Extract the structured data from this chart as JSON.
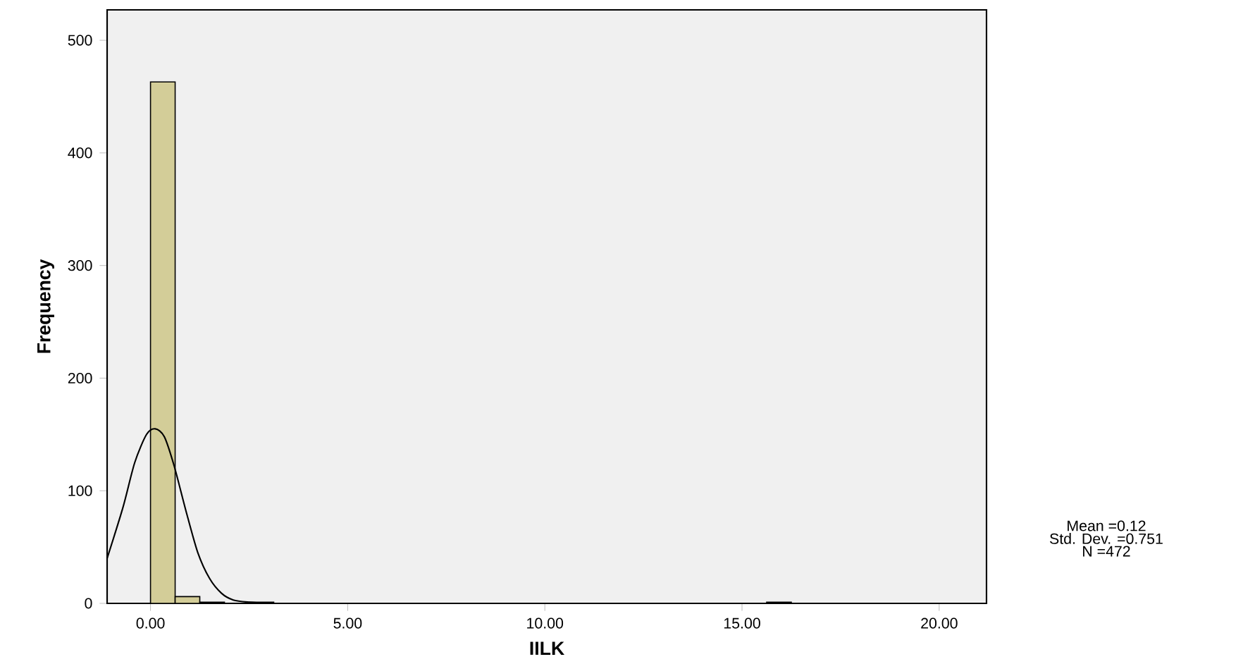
{
  "chart_data": {
    "type": "histogram",
    "xlabel": "IILK",
    "ylabel": "Frequency",
    "xlim": [
      -1.1,
      21.2
    ],
    "ylim": [
      0,
      527
    ],
    "xticks": [
      {
        "value": 0,
        "label": "0.00"
      },
      {
        "value": 5,
        "label": "5.00"
      },
      {
        "value": 10,
        "label": "10.00"
      },
      {
        "value": 15,
        "label": "15.00"
      },
      {
        "value": 20,
        "label": "20.00"
      }
    ],
    "yticks": [
      0,
      100,
      200,
      300,
      400,
      500
    ],
    "grid": false,
    "series": [
      {
        "color": "#d3cd98",
        "bins": [
          0,
          0.625,
          1.25,
          1.875,
          2.5,
          3.125,
          3.75,
          4.375,
          5,
          5.625,
          6.25,
          6.875,
          7.5,
          8.125,
          8.75,
          9.375,
          10,
          10.625,
          11.25,
          11.875,
          12.5,
          13.125,
          13.75,
          14.375,
          15,
          15.625,
          16.25
        ],
        "values": [
          463,
          6,
          1,
          0,
          1,
          0,
          0,
          0,
          0,
          0,
          0,
          0,
          0,
          0,
          0,
          0,
          0,
          0,
          0,
          0,
          0,
          0,
          0,
          0,
          0,
          1
        ]
      },
      {
        "type": "line",
        "color": "#000000",
        "x": [
          -1.1,
          -0.7,
          -0.4,
          -0.1,
          0.12,
          0.35,
          0.6,
          0.9,
          1.2,
          1.5,
          1.8,
          2.1,
          2.5,
          3.0
        ],
        "values": [
          40,
          85,
          125,
          150,
          155,
          148,
          122,
          82,
          45,
          22,
          9,
          3,
          1,
          0
        ]
      }
    ],
    "annotations": [
      "Mean =0.12",
      "Std. Dev. =0.751",
      "N =472"
    ]
  }
}
